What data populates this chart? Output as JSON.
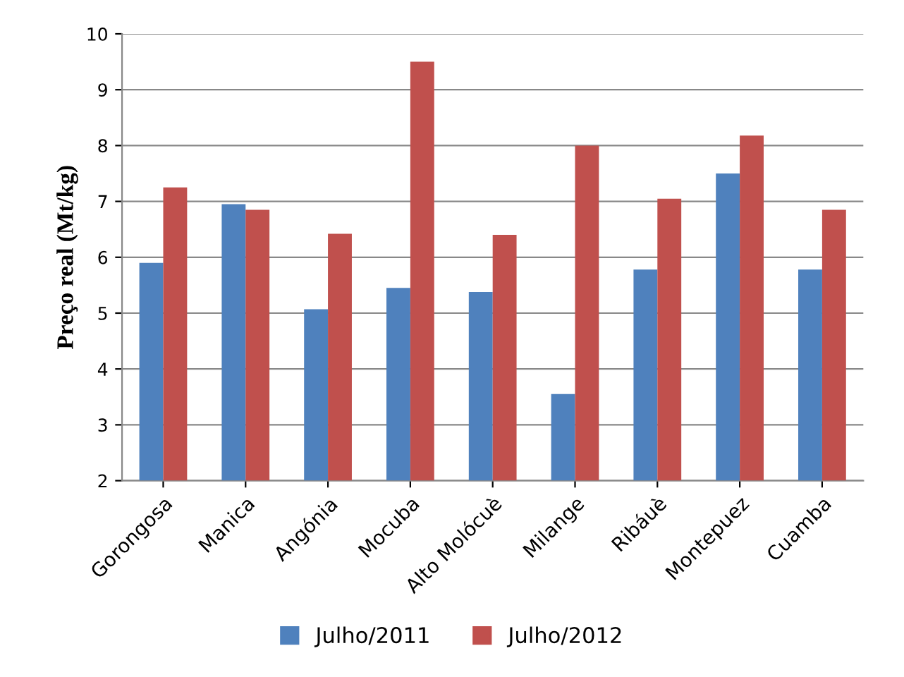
{
  "chart_data": {
    "type": "bar",
    "ylabel": "Preço real (Mt/kg)",
    "categories": [
      "Gorongosa",
      "Manica",
      "Angónia",
      "Mocuba",
      "Alto Molócuè",
      "Milange",
      "Ribáuè",
      "Montepuez",
      "Cuamba"
    ],
    "series": [
      {
        "name": "Julho/2011",
        "color": "#4f81bd",
        "values": [
          5.9,
          6.95,
          5.07,
          5.45,
          5.38,
          3.55,
          5.78,
          7.5,
          5.78
        ]
      },
      {
        "name": "Julho/2012",
        "color": "#c0504d",
        "values": [
          7.25,
          6.85,
          6.42,
          9.5,
          6.4,
          8.0,
          7.05,
          8.18,
          6.85
        ]
      }
    ],
    "ylim": [
      2,
      10
    ],
    "yticks": [
      2,
      3,
      4,
      5,
      6,
      7,
      8,
      9,
      10
    ],
    "grid": "y",
    "legend": "bottom"
  }
}
